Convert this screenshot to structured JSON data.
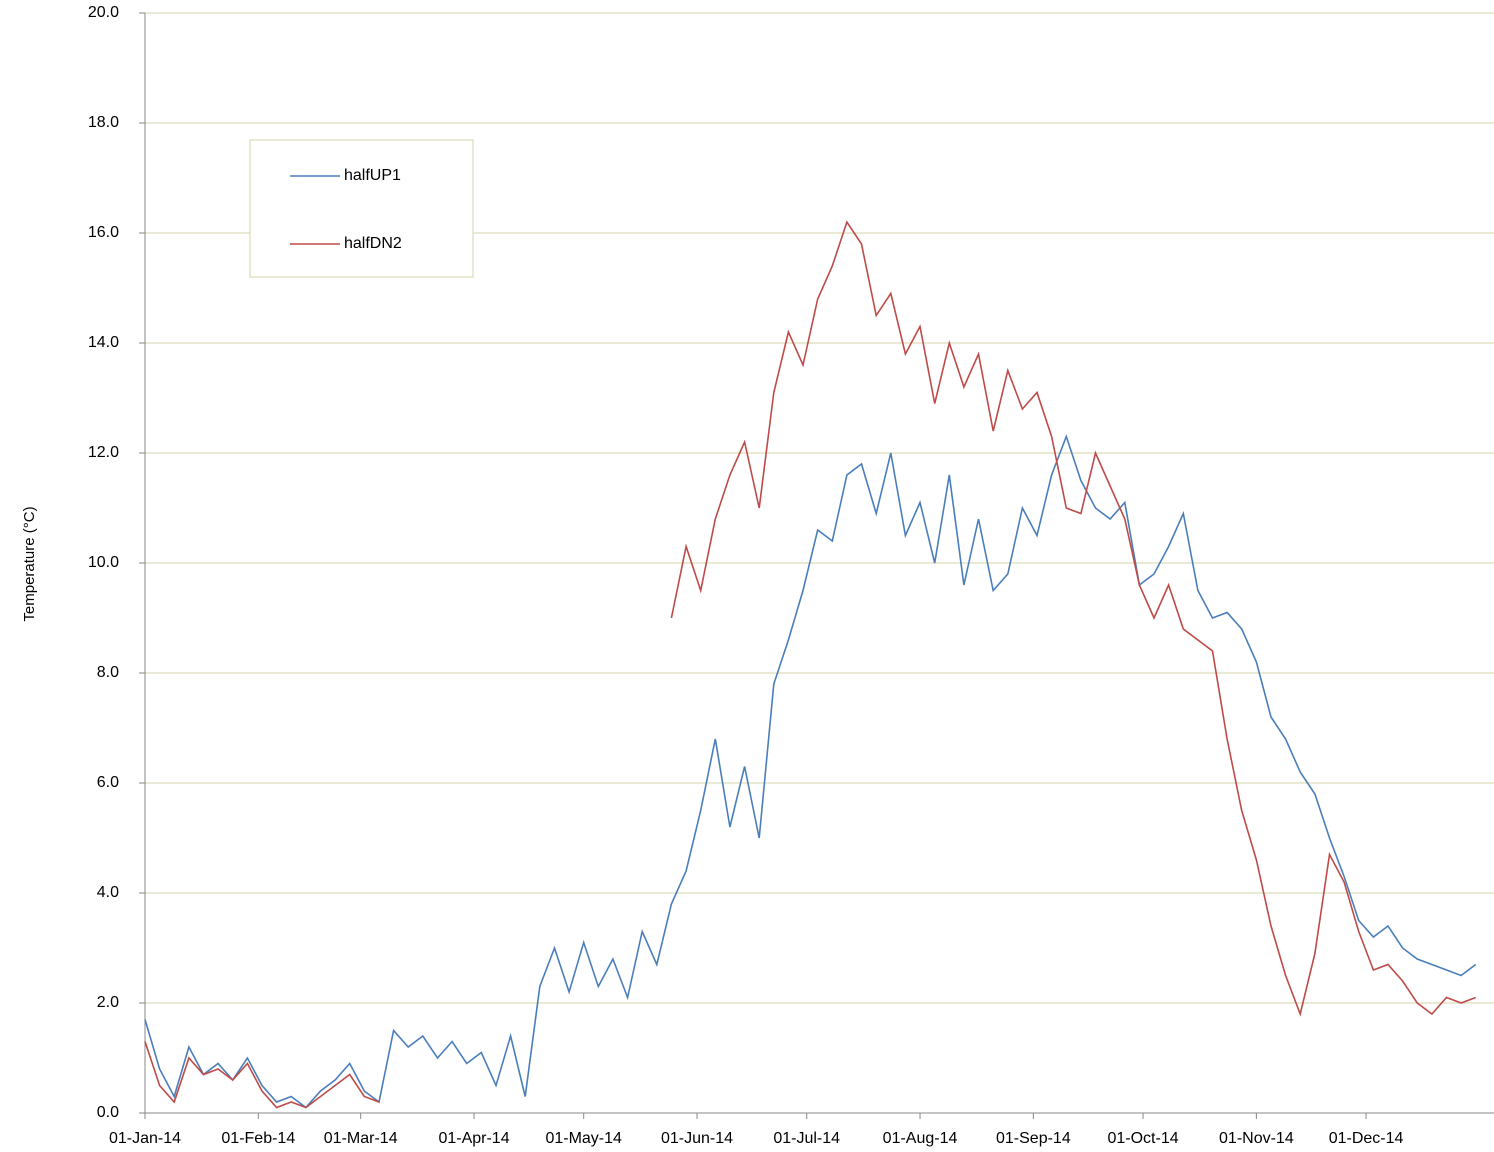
{
  "chart_data": {
    "type": "line",
    "y_label": "Temperature (°C)",
    "x": [
      "2014-01-01",
      "2014-01-05",
      "2014-01-09",
      "2014-01-13",
      "2014-01-17",
      "2014-01-21",
      "2014-01-25",
      "2014-01-29",
      "2014-02-02",
      "2014-02-06",
      "2014-02-10",
      "2014-02-14",
      "2014-02-18",
      "2014-02-22",
      "2014-02-26",
      "2014-03-02",
      "2014-03-06",
      "2014-03-10",
      "2014-03-14",
      "2014-03-18",
      "2014-03-22",
      "2014-03-26",
      "2014-03-30",
      "2014-04-03",
      "2014-04-07",
      "2014-04-11",
      "2014-04-15",
      "2014-04-19",
      "2014-04-23",
      "2014-04-27",
      "2014-05-01",
      "2014-05-05",
      "2014-05-09",
      "2014-05-13",
      "2014-05-17",
      "2014-05-21",
      "2014-05-25",
      "2014-05-29",
      "2014-06-02",
      "2014-06-06",
      "2014-06-10",
      "2014-06-14",
      "2014-06-18",
      "2014-06-22",
      "2014-06-26",
      "2014-06-30",
      "2014-07-04",
      "2014-07-08",
      "2014-07-12",
      "2014-07-16",
      "2014-07-20",
      "2014-07-24",
      "2014-07-28",
      "2014-08-01",
      "2014-08-05",
      "2014-08-09",
      "2014-08-13",
      "2014-08-17",
      "2014-08-21",
      "2014-08-25",
      "2014-08-29",
      "2014-09-02",
      "2014-09-06",
      "2014-09-10",
      "2014-09-14",
      "2014-09-18",
      "2014-09-22",
      "2014-09-26",
      "2014-09-30",
      "2014-10-04",
      "2014-10-08",
      "2014-10-12",
      "2014-10-16",
      "2014-10-20",
      "2014-10-24",
      "2014-10-28",
      "2014-11-01",
      "2014-11-05",
      "2014-11-09",
      "2014-11-13",
      "2014-11-17",
      "2014-11-21",
      "2014-11-25",
      "2014-11-29",
      "2014-12-03",
      "2014-12-07",
      "2014-12-11",
      "2014-12-15",
      "2014-12-19",
      "2014-12-23",
      "2014-12-27",
      "2014-12-31"
    ],
    "series": [
      {
        "name": "halfUP1",
        "color": "#4a7ebb",
        "values": [
          1.7,
          0.8,
          0.3,
          1.2,
          0.7,
          0.9,
          0.6,
          1.0,
          0.5,
          0.2,
          0.3,
          0.1,
          0.4,
          0.6,
          0.9,
          0.4,
          0.2,
          1.5,
          1.2,
          1.4,
          1.0,
          1.3,
          0.9,
          1.1,
          0.5,
          1.4,
          0.3,
          2.3,
          3.0,
          2.2,
          3.1,
          2.3,
          2.8,
          2.1,
          3.3,
          2.7,
          3.8,
          4.4,
          5.5,
          6.8,
          5.2,
          6.3,
          5.0,
          7.8,
          8.6,
          9.5,
          10.6,
          10.4,
          11.6,
          11.8,
          10.9,
          12.0,
          10.5,
          11.1,
          10.0,
          11.6,
          9.6,
          10.8,
          9.5,
          9.8,
          11.0,
          10.5,
          11.6,
          12.3,
          11.5,
          11.0,
          10.8,
          11.1,
          9.6,
          9.8,
          10.3,
          10.9,
          9.5,
          9.0,
          9.1,
          8.8,
          8.2,
          7.2,
          6.8,
          6.2,
          5.8,
          5.0,
          4.3,
          3.5,
          3.2,
          3.4,
          3.0,
          2.8,
          2.7,
          2.6,
          2.5,
          2.7
        ]
      },
      {
        "name": "halfDN2",
        "color": "#be4b48",
        "values": [
          1.3,
          0.5,
          0.2,
          1.0,
          0.7,
          0.8,
          0.6,
          0.9,
          0.4,
          0.1,
          0.2,
          0.1,
          0.3,
          0.5,
          0.7,
          0.3,
          0.2,
          null,
          null,
          null,
          null,
          null,
          null,
          null,
          null,
          null,
          null,
          null,
          null,
          null,
          null,
          null,
          null,
          null,
          null,
          null,
          9.0,
          10.3,
          9.5,
          10.8,
          11.6,
          12.2,
          11.0,
          13.1,
          14.2,
          13.6,
          14.8,
          15.4,
          16.2,
          15.8,
          14.5,
          14.9,
          13.8,
          14.3,
          12.9,
          14.0,
          13.2,
          13.8,
          12.4,
          13.5,
          12.8,
          13.1,
          12.3,
          11.0,
          10.9,
          12.0,
          11.4,
          10.8,
          9.6,
          9.0,
          9.6,
          8.8,
          8.6,
          8.4,
          6.8,
          5.5,
          4.6,
          3.4,
          2.5,
          1.8,
          2.9,
          4.7,
          4.2,
          3.3,
          2.6,
          2.7,
          2.4,
          2.0,
          1.8,
          2.1,
          2.0,
          2.1
        ]
      }
    ],
    "xlim": [
      "2014-01-01",
      "2015-01-05"
    ],
    "xticks": [
      {
        "value": "2014-01-01",
        "label": "01-Jan-14"
      },
      {
        "value": "2014-02-01",
        "label": "01-Feb-14"
      },
      {
        "value": "2014-03-01",
        "label": "01-Mar-14"
      },
      {
        "value": "2014-04-01",
        "label": "01-Apr-14"
      },
      {
        "value": "2014-05-01",
        "label": "01-May-14"
      },
      {
        "value": "2014-06-01",
        "label": "01-Jun-14"
      },
      {
        "value": "2014-07-01",
        "label": "01-Jul-14"
      },
      {
        "value": "2014-08-01",
        "label": "01-Aug-14"
      },
      {
        "value": "2014-09-01",
        "label": "01-Sep-14"
      },
      {
        "value": "2014-10-01",
        "label": "01-Oct-14"
      },
      {
        "value": "2014-11-01",
        "label": "01-Nov-14"
      },
      {
        "value": "2014-12-01",
        "label": "01-Dec-14"
      }
    ],
    "ylim": [
      0,
      20
    ],
    "yticks": [
      {
        "value": 0,
        "label": "0.0"
      },
      {
        "value": 2,
        "label": "2.0"
      },
      {
        "value": 4,
        "label": "4.0"
      },
      {
        "value": 6,
        "label": "6.0"
      },
      {
        "value": 8,
        "label": "8.0"
      },
      {
        "value": 10,
        "label": "10.0"
      },
      {
        "value": 12,
        "label": "12.0"
      },
      {
        "value": 14,
        "label": "14.0"
      },
      {
        "value": 16,
        "label": "16.0"
      },
      {
        "value": 18,
        "label": "18.0"
      },
      {
        "value": 20,
        "label": "20.0"
      }
    ],
    "grid": true
  }
}
